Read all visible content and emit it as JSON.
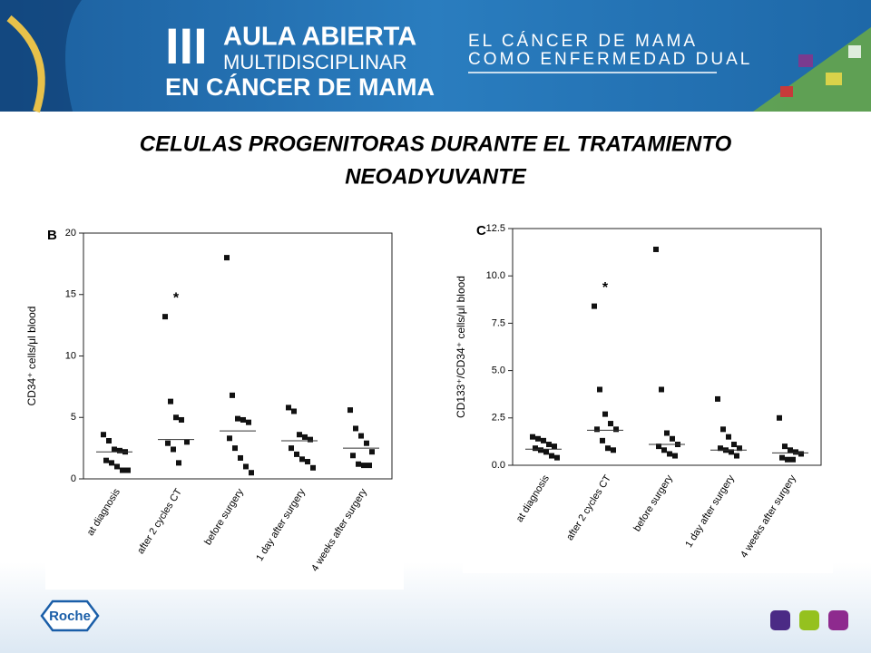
{
  "header": {
    "numeral": "III",
    "line1": "AULA ABIERTA",
    "line2": "MULTIDISCIPLINAR",
    "line3": "EN CÁNCER DE MAMA",
    "tag1": "EL CÁNCER DE MAMA",
    "tag2": "COMO ENFERMEDAD DUAL"
  },
  "title": [
    "CELULAS PROGENITORAS DURANTE EL TRATAMIENTO",
    "NEOADYUVANTE"
  ],
  "footer": {
    "logo": "Roche"
  },
  "chart_data": [
    {
      "type": "dot",
      "panel": "B",
      "y_label": "CD34⁺ cells/μl blood",
      "categories": [
        "at diagnosis",
        "after 2 cycles CT",
        "before surgery",
        "1 day after surgery",
        "4 weeks after surgery"
      ],
      "points": [
        [
          3.6,
          3.1,
          2.4,
          2.3,
          2.2,
          1.5,
          1.3,
          1.0,
          0.7,
          0.7
        ],
        [
          13.2,
          6.3,
          5.0,
          4.8,
          3.0,
          2.9,
          2.4,
          1.3
        ],
        [
          18.0,
          6.8,
          4.9,
          4.8,
          4.6,
          3.3,
          2.5,
          1.7,
          1.0,
          0.5
        ],
        [
          5.8,
          5.5,
          3.6,
          3.4,
          3.2,
          2.5,
          2.0,
          1.6,
          1.4,
          0.9
        ],
        [
          5.6,
          4.1,
          3.5,
          2.9,
          2.2,
          1.9,
          1.2,
          1.1,
          1.1
        ]
      ],
      "medians": [
        2.2,
        3.2,
        3.9,
        3.1,
        2.5
      ],
      "annotations": [
        {
          "text": "*",
          "category": "after 2 cycles CT"
        }
      ],
      "color": "#111111",
      "ylim": [
        0,
        20
      ],
      "yticks": [
        0,
        5,
        10,
        15,
        20
      ]
    },
    {
      "type": "dot",
      "panel": "C",
      "y_label": "CD133⁺/CD34⁺ cells/μl blood",
      "categories": [
        "at diagnosis",
        "after 2 cycles CT",
        "before surgery",
        "1 day after surgery",
        "4 weeks after surgery"
      ],
      "points": [
        [
          1.5,
          1.4,
          1.3,
          1.1,
          1.0,
          0.9,
          0.8,
          0.7,
          0.5,
          0.4
        ],
        [
          8.4,
          4.0,
          2.7,
          2.2,
          1.9,
          1.9,
          1.3,
          0.9,
          0.8
        ],
        [
          11.4,
          4.0,
          1.7,
          1.4,
          1.1,
          1.0,
          0.8,
          0.6,
          0.5
        ],
        [
          3.5,
          1.9,
          1.5,
          1.1,
          0.9,
          0.9,
          0.8,
          0.7,
          0.5
        ],
        [
          2.5,
          1.0,
          0.8,
          0.7,
          0.6,
          0.4,
          0.3,
          0.3
        ]
      ],
      "medians": [
        0.85,
        1.85,
        1.1,
        0.8,
        0.65
      ],
      "annotations": [
        {
          "text": "*",
          "category": "after 2 cycles CT"
        }
      ],
      "color": "#111111",
      "ylim": [
        0,
        12.5
      ],
      "yticks": [
        {
          "value": 0,
          "label": "0.0"
        },
        {
          "value": 2.5,
          "label": "2.5"
        },
        {
          "value": 5,
          "label": "5.0"
        },
        {
          "value": 7.5,
          "label": "7.5"
        },
        {
          "value": 10,
          "label": "10.0"
        },
        {
          "value": 12.5,
          "label": "12.5"
        }
      ]
    }
  ]
}
